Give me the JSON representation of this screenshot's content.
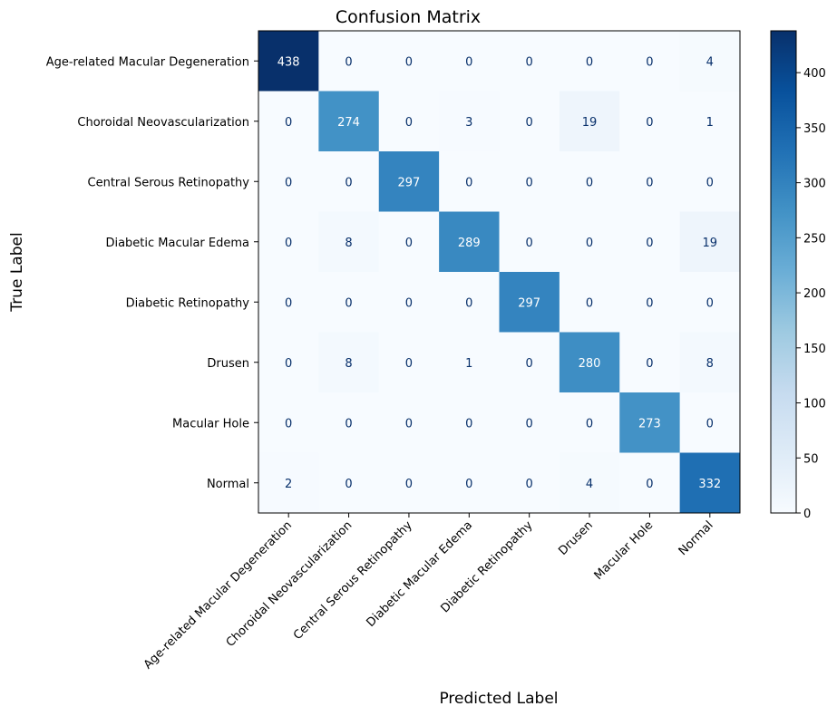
{
  "chart_data": {
    "type": "heatmap",
    "title": "Confusion Matrix",
    "xlabel": "Predicted Label",
    "ylabel": "True Label",
    "row_labels": [
      "Age-related Macular Degeneration",
      "Choroidal Neovascularization",
      "Central Serous Retinopathy",
      "Diabetic Macular Edema",
      "Diabetic Retinopathy",
      "Drusen",
      "Macular Hole",
      "Normal"
    ],
    "col_labels": [
      "Age-related Macular Degeneration",
      "Choroidal Neovascularization",
      "Central Serous Retinopathy",
      "Diabetic Macular Edema",
      "Diabetic Retinopathy",
      "Drusen",
      "Macular Hole",
      "Normal"
    ],
    "values": [
      [
        438,
        0,
        0,
        0,
        0,
        0,
        0,
        4
      ],
      [
        0,
        274,
        0,
        3,
        0,
        19,
        0,
        1
      ],
      [
        0,
        0,
        297,
        0,
        0,
        0,
        0,
        0
      ],
      [
        0,
        8,
        0,
        289,
        0,
        0,
        0,
        19
      ],
      [
        0,
        0,
        0,
        0,
        297,
        0,
        0,
        0
      ],
      [
        0,
        8,
        0,
        1,
        0,
        280,
        0,
        8
      ],
      [
        0,
        0,
        0,
        0,
        0,
        0,
        273,
        0
      ],
      [
        2,
        0,
        0,
        0,
        0,
        4,
        0,
        332
      ]
    ],
    "colormap": "Blues",
    "vmin": 0,
    "vmax": 438,
    "colorbar_ticks": [
      0,
      50,
      100,
      150,
      200,
      250,
      300,
      350,
      400
    ]
  }
}
